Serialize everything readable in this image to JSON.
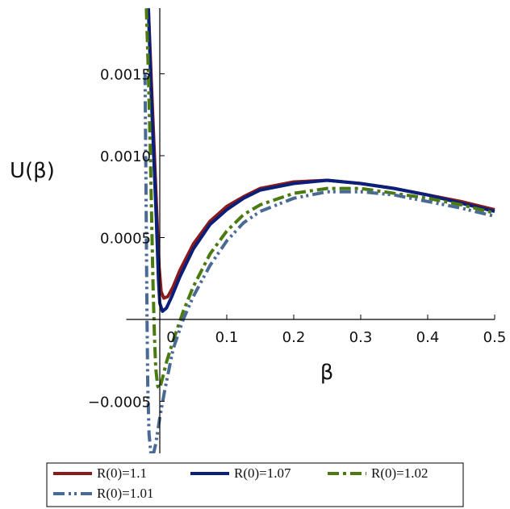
{
  "chart_data": {
    "type": "line",
    "xlabel": "β",
    "ylabel": "U(β)",
    "xlim": [
      -0.05,
      0.5
    ],
    "ylim": [
      -0.00085,
      0.00185
    ],
    "x_ticks": [
      {
        "value": 0,
        "label": "0"
      },
      {
        "value": 0.1,
        "label": "0.1"
      },
      {
        "value": 0.2,
        "label": "0.2"
      },
      {
        "value": 0.3,
        "label": "0.3"
      },
      {
        "value": 0.4,
        "label": "0.4"
      },
      {
        "value": 0.5,
        "label": "0.5"
      }
    ],
    "y_ticks": [
      {
        "value": 0.0015,
        "label": "0.0015"
      },
      {
        "value": 0.001,
        "label": "0.0010"
      },
      {
        "value": 0.0005,
        "label": "0.0005"
      },
      {
        "value": -0.0005,
        "label": "−0.0005"
      }
    ],
    "grid": false,
    "legend_position": "bottom",
    "series": [
      {
        "name": "R(0)=1.1",
        "color": "#8b1a1a",
        "dash": "solid",
        "points": [
          [
            -0.017,
            0.0019
          ],
          [
            -0.012,
            0.0014
          ],
          [
            -0.008,
            0.001
          ],
          [
            -0.004,
            0.0006
          ],
          [
            -0.001,
            0.00032
          ],
          [
            0.002,
            0.00017
          ],
          [
            0.006,
            0.00013
          ],
          [
            0.012,
            0.00014
          ],
          [
            0.02,
            0.0002
          ],
          [
            0.03,
            0.0003
          ],
          [
            0.05,
            0.00046
          ],
          [
            0.075,
            0.0006
          ],
          [
            0.1,
            0.00069
          ],
          [
            0.125,
            0.00075
          ],
          [
            0.15,
            0.0008
          ],
          [
            0.2,
            0.00084
          ],
          [
            0.25,
            0.00085
          ],
          [
            0.3,
            0.00083
          ],
          [
            0.35,
            0.0008
          ],
          [
            0.4,
            0.00076
          ],
          [
            0.45,
            0.00072
          ],
          [
            0.5,
            0.00067
          ]
        ]
      },
      {
        "name": "R(0)=1.07",
        "color": "#0a1f7a",
        "dash": "solid",
        "points": [
          [
            -0.017,
            0.0019
          ],
          [
            -0.013,
            0.0014
          ],
          [
            -0.009,
            0.001
          ],
          [
            -0.005,
            0.0006
          ],
          [
            -0.002,
            0.00025
          ],
          [
            0,
            0.0001
          ],
          [
            0.004,
            5e-05
          ],
          [
            0.01,
            7e-05
          ],
          [
            0.018,
            0.00014
          ],
          [
            0.03,
            0.00026
          ],
          [
            0.05,
            0.00043
          ],
          [
            0.075,
            0.00058
          ],
          [
            0.1,
            0.00067
          ],
          [
            0.125,
            0.00074
          ],
          [
            0.15,
            0.00079
          ],
          [
            0.2,
            0.00083
          ],
          [
            0.25,
            0.00085
          ],
          [
            0.3,
            0.00083
          ],
          [
            0.35,
            0.0008
          ],
          [
            0.4,
            0.00076
          ],
          [
            0.45,
            0.00071
          ],
          [
            0.5,
            0.00066
          ]
        ]
      },
      {
        "name": "R(0)=1.02",
        "color": "#4a7a10",
        "dash": "14,5,4,5",
        "points": [
          [
            -0.02,
            0.0019
          ],
          [
            -0.017,
            0.0015
          ],
          [
            -0.014,
            0.001
          ],
          [
            -0.012,
            0.0006
          ],
          [
            -0.01,
            0.0002
          ],
          [
            -0.008,
            -0.0001
          ],
          [
            -0.006,
            -0.0003
          ],
          [
            -0.003,
            -0.00041
          ],
          [
            0,
            -0.00042
          ],
          [
            0.004,
            -0.00036
          ],
          [
            0.01,
            -0.00026
          ],
          [
            0.02,
            -0.00013
          ],
          [
            0.035,
            5e-05
          ],
          [
            0.05,
            0.0002
          ],
          [
            0.075,
            0.0004
          ],
          [
            0.1,
            0.00054
          ],
          [
            0.125,
            0.00064
          ],
          [
            0.15,
            0.0007
          ],
          [
            0.2,
            0.00077
          ],
          [
            0.25,
            0.0008
          ],
          [
            0.3,
            0.0008
          ],
          [
            0.35,
            0.00077
          ],
          [
            0.4,
            0.00074
          ],
          [
            0.45,
            0.0007
          ],
          [
            0.5,
            0.00065
          ]
        ]
      },
      {
        "name": "R(0)=1.01",
        "color": "#4a6a96",
        "dash": "14,5,3,4,3,5",
        "points": [
          [
            -0.022,
            0.0015
          ],
          [
            -0.021,
            0.001
          ],
          [
            -0.02,
            0.0005
          ],
          [
            -0.019,
            0
          ],
          [
            -0.018,
            -0.0004
          ],
          [
            -0.016,
            -0.0007
          ],
          [
            -0.013,
            -0.00083
          ],
          [
            -0.01,
            -0.00083
          ],
          [
            -0.006,
            -0.00076
          ],
          [
            0,
            -0.0006
          ],
          [
            0.008,
            -0.00042
          ],
          [
            0.02,
            -0.00018
          ],
          [
            0.035,
            0
          ],
          [
            0.05,
            0.00014
          ],
          [
            0.075,
            0.00033
          ],
          [
            0.1,
            0.00048
          ],
          [
            0.125,
            0.00059
          ],
          [
            0.15,
            0.00066
          ],
          [
            0.2,
            0.00074
          ],
          [
            0.25,
            0.00078
          ],
          [
            0.3,
            0.00078
          ],
          [
            0.35,
            0.00076
          ],
          [
            0.4,
            0.00072
          ],
          [
            0.45,
            0.00068
          ],
          [
            0.5,
            0.00063
          ]
        ]
      }
    ]
  }
}
